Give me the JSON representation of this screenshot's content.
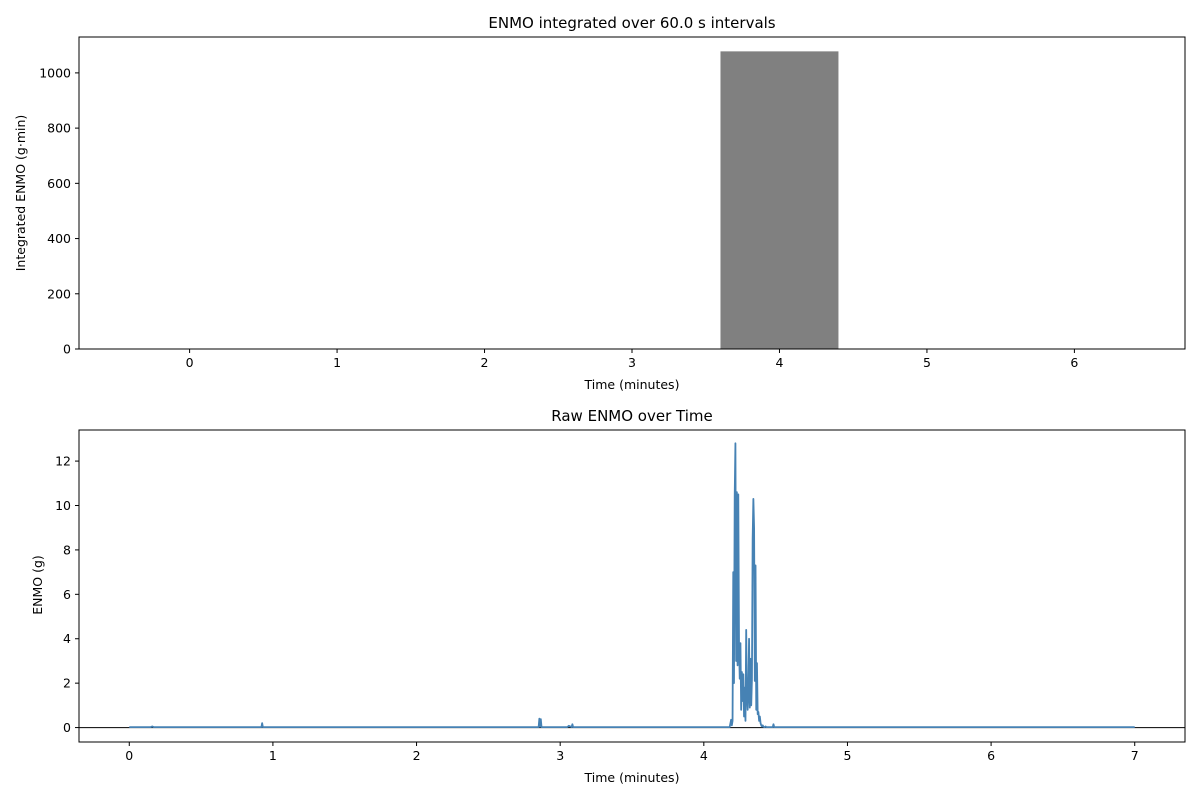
{
  "chart_data": [
    {
      "type": "bar",
      "title": "ENMO integrated over 60.0 s intervals",
      "xlabel": "Time (minutes)",
      "ylabel": "Integrated ENMO (g·min)",
      "xlim": [
        -0.75,
        6.75
      ],
      "ylim": [
        0,
        1130
      ],
      "xticks": [
        0,
        1,
        2,
        3,
        4,
        5,
        6
      ],
      "yticks": [
        0,
        200,
        400,
        600,
        800,
        1000
      ],
      "bar_width": 0.8,
      "bar_color": "#808080",
      "grid": false,
      "x": [
        0,
        1,
        2,
        3,
        4,
        5,
        6
      ],
      "values": [
        0,
        0,
        0,
        0,
        1078,
        0,
        0
      ]
    },
    {
      "type": "line",
      "title": "Raw ENMO over Time",
      "xlabel": "Time (minutes)",
      "ylabel": "ENMO (g)",
      "xlim": [
        -0.35,
        7.35
      ],
      "ylim": [
        -0.65,
        13.4
      ],
      "xticks": [
        0,
        1,
        2,
        3,
        4,
        5,
        6,
        7
      ],
      "yticks": [
        0,
        2,
        4,
        6,
        8,
        10,
        12
      ],
      "line_color": "#4682b4",
      "grid": false,
      "zero_line": true,
      "x": [
        0,
        0.15,
        0.16,
        0.17,
        0.92,
        0.925,
        0.93,
        2.85,
        2.855,
        2.86,
        2.865,
        2.87,
        3.05,
        3.06,
        3.08,
        3.085,
        3.09,
        4.18,
        4.19,
        4.195,
        4.2,
        4.205,
        4.21,
        4.215,
        4.22,
        4.225,
        4.23,
        4.235,
        4.24,
        4.245,
        4.25,
        4.255,
        4.26,
        4.265,
        4.27,
        4.275,
        4.28,
        4.285,
        4.29,
        4.295,
        4.3,
        4.305,
        4.31,
        4.315,
        4.32,
        4.325,
        4.33,
        4.335,
        4.34,
        4.345,
        4.35,
        4.355,
        4.36,
        4.365,
        4.37,
        4.375,
        4.38,
        4.385,
        4.39,
        4.395,
        4.4,
        4.405,
        4.41,
        4.415,
        4.42,
        4.425,
        4.43,
        4.435,
        4.44,
        4.445,
        4.45,
        4.46,
        4.47,
        4.48,
        4.485,
        4.49,
        4.5,
        7.0
      ],
      "y": [
        0.02,
        0.02,
        0.05,
        0.02,
        0.02,
        0.2,
        0.02,
        0.02,
        0.4,
        0.05,
        0.38,
        0.02,
        0.02,
        0.08,
        0.02,
        0.15,
        0.02,
        0.02,
        0.35,
        0.1,
        0.3,
        7.0,
        2.0,
        10.4,
        12.8,
        3.0,
        10.6,
        2.8,
        10.5,
        3.8,
        2.2,
        3.8,
        0.8,
        2.5,
        1.2,
        2.4,
        0.5,
        1.8,
        0.3,
        4.4,
        1.5,
        0.8,
        1.6,
        4.0,
        0.9,
        3.1,
        1.0,
        2.2,
        8.5,
        10.3,
        9.0,
        2.1,
        7.3,
        0.8,
        2.9,
        0.6,
        0.7,
        0.3,
        0.5,
        0.2,
        0.1,
        0.05,
        0.1,
        0.04,
        0.02,
        0.02,
        0.05,
        0.02,
        0.02,
        0.02,
        0.02,
        0.02,
        0.02,
        0.02,
        0.15,
        0.02,
        0.02,
        0.02
      ]
    }
  ]
}
